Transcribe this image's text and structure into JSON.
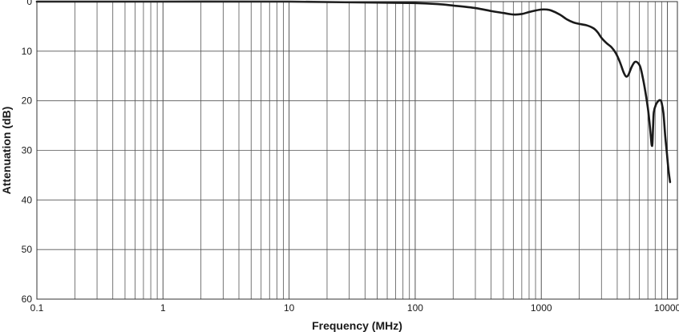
{
  "chart_data": {
    "type": "line",
    "title": "",
    "xlabel": "Frequency (MHz)",
    "ylabel": "Attenuation (dB)",
    "x_scale": "log",
    "xlim": [
      0.1,
      12000
    ],
    "ylim": [
      0,
      60
    ],
    "y_inverted": true,
    "grid": true,
    "x_ticks": [
      {
        "value": 0.1,
        "label": "0.1"
      },
      {
        "value": 1,
        "label": "1"
      },
      {
        "value": 10,
        "label": "10"
      },
      {
        "value": 100,
        "label": "100"
      },
      {
        "value": 1000,
        "label": "1000"
      },
      {
        "value": 10000,
        "label": "10000"
      }
    ],
    "y_ticks": [
      {
        "value": 0,
        "label": "0"
      },
      {
        "value": 10,
        "label": "10"
      },
      {
        "value": 20,
        "label": "20"
      },
      {
        "value": 30,
        "label": "30"
      },
      {
        "value": 40,
        "label": "40"
      },
      {
        "value": 50,
        "label": "50"
      },
      {
        "value": 60,
        "label": "60"
      }
    ],
    "series": [
      {
        "color": "#1a1a1a",
        "x": [
          0.1,
          1,
          10,
          50,
          100,
          150,
          200,
          300,
          400,
          500,
          600,
          700,
          800,
          900,
          1000,
          1100,
          1200,
          1400,
          1600,
          1800,
          2000,
          2300,
          2600,
          2800,
          3000,
          3300,
          3600,
          3900,
          4200,
          4500,
          4700,
          4900,
          5200,
          5500,
          5800,
          6100,
          6400,
          6700,
          7000,
          7200,
          7400,
          7500,
          7600,
          7700,
          7800,
          8100,
          8500,
          8800,
          9000,
          9300,
          9600,
          9900,
          10200,
          10500
        ],
        "y": [
          0,
          0,
          0,
          0.2,
          0.3,
          0.5,
          0.8,
          1.3,
          1.9,
          2.3,
          2.6,
          2.5,
          2.1,
          1.8,
          1.6,
          1.6,
          1.8,
          2.6,
          3.6,
          4.2,
          4.5,
          4.8,
          5.4,
          6.2,
          7.3,
          8.4,
          9.2,
          10.4,
          12.2,
          14.3,
          15.1,
          14.8,
          13.2,
          12.2,
          12.3,
          13.2,
          15.5,
          18.3,
          21.5,
          24.2,
          27.4,
          28.9,
          28.7,
          25.2,
          22.3,
          20.8,
          20.0,
          19.9,
          20.4,
          22.5,
          27.0,
          30.5,
          34.0,
          36.4
        ]
      }
    ]
  }
}
